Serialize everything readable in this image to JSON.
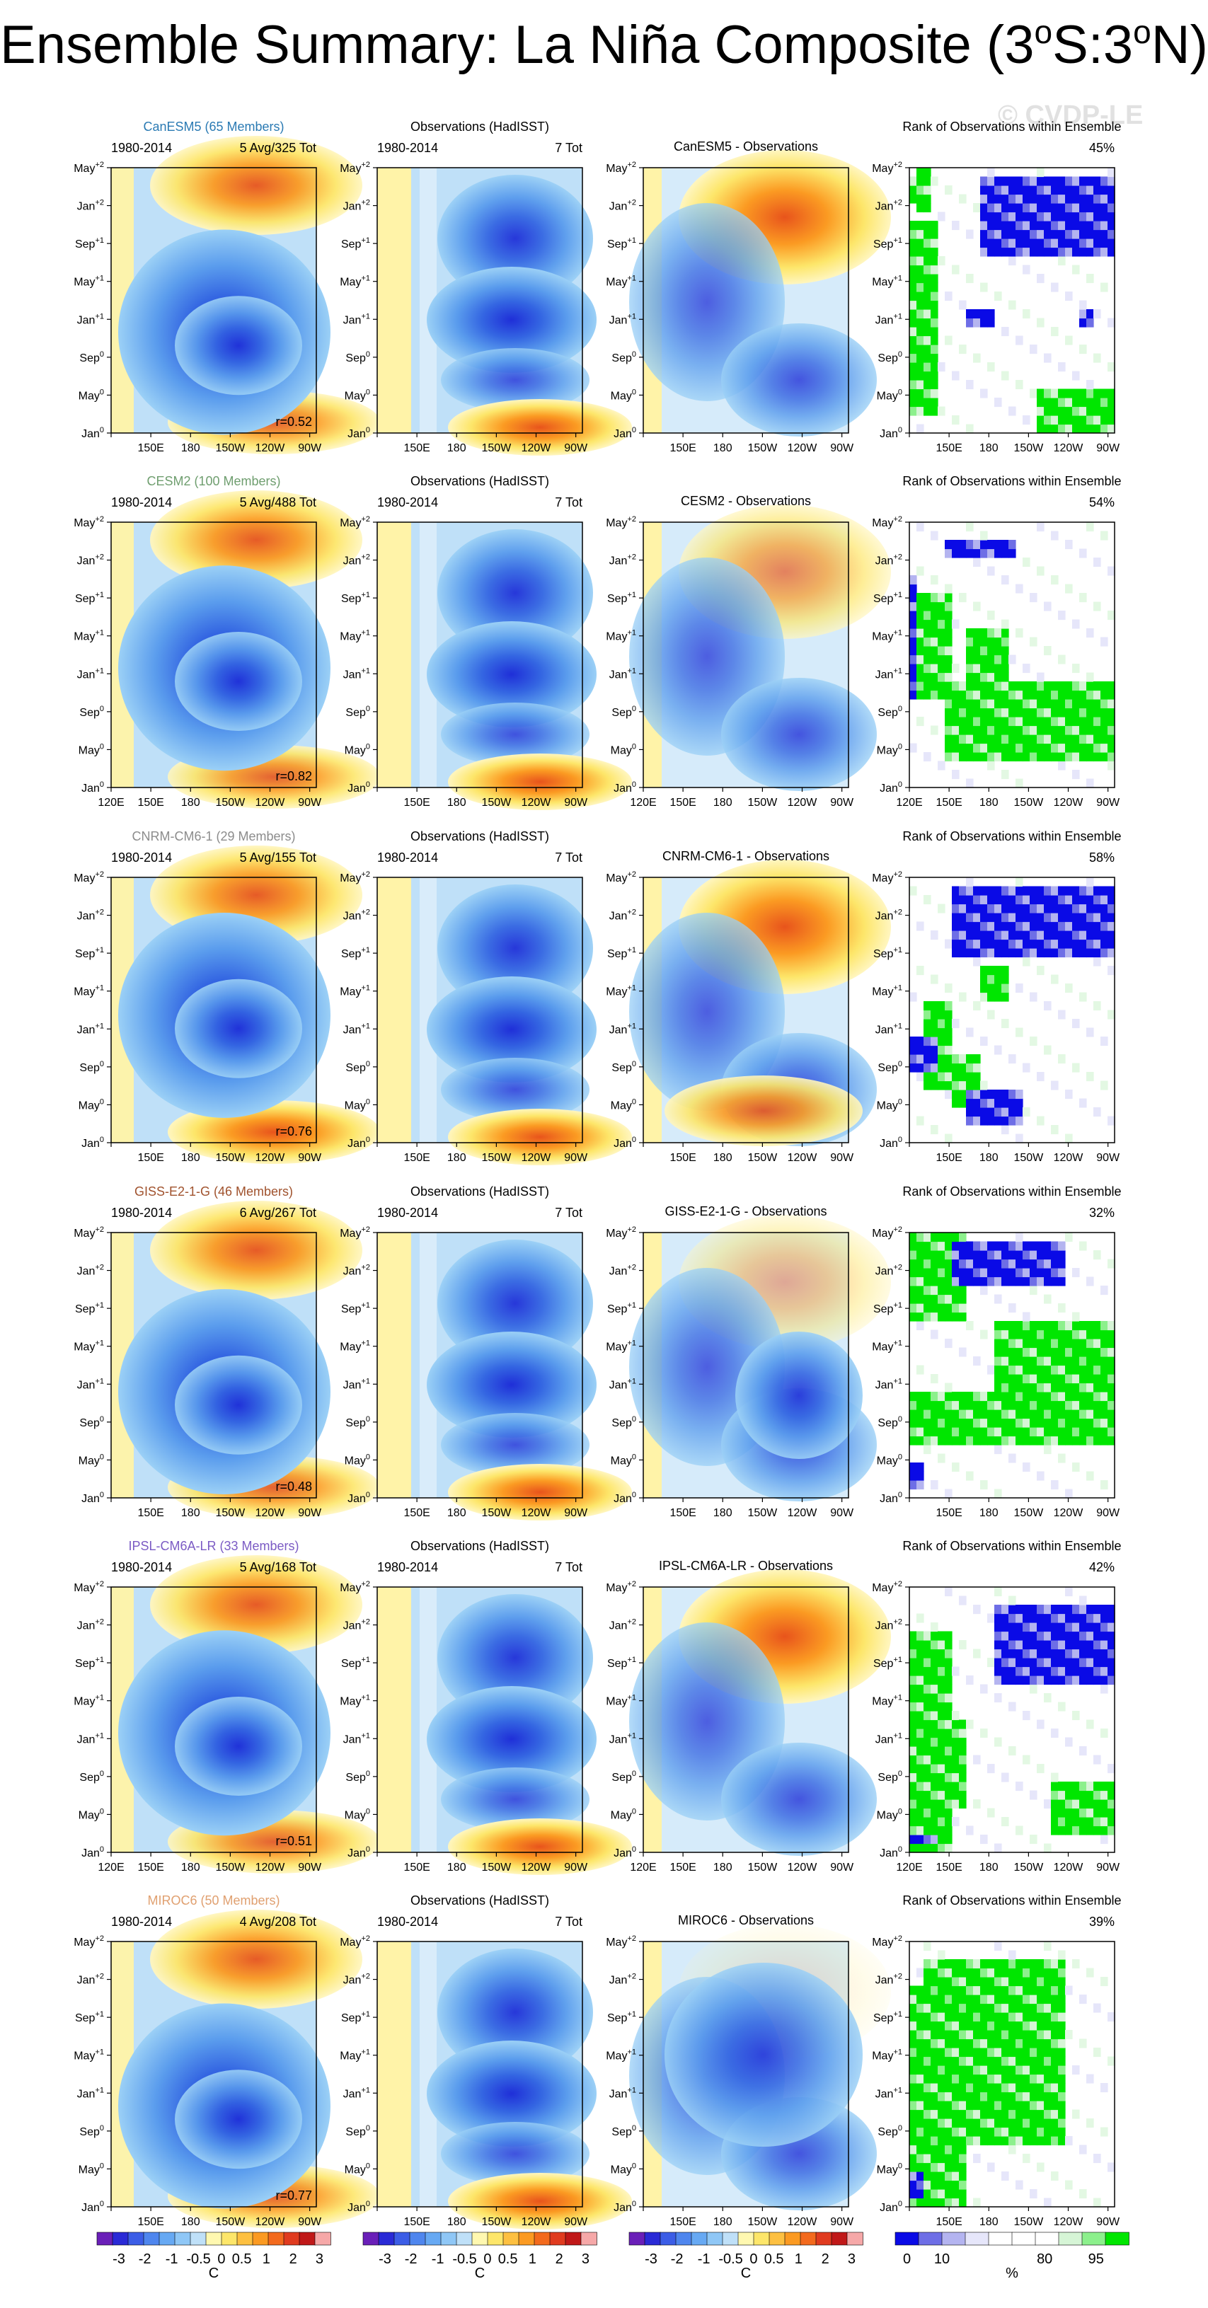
{
  "title": {
    "main": "Ensemble Summary: La Niña Composite (3",
    "deg1": "o",
    "mid": "S:3",
    "deg2": "o",
    "end": "N)"
  },
  "watermark": "© CVDP-LE",
  "chart_data": {
    "type": "heatmap",
    "description_vars": "Hovmöller composites of equatorial (3S:3N) SST anomaly vs time lag and longitude",
    "y_tick_labels": [
      "Jan",
      "May",
      "Sep",
      "Jan",
      "May",
      "Sep",
      "Jan",
      "May"
    ],
    "y_tick_sups": [
      "0",
      "0",
      "0",
      "+1",
      "+1",
      "+1",
      "+2",
      "+2"
    ],
    "x_tick_labels": [
      "120E",
      "150E",
      "180",
      "150W",
      "120W",
      "90W"
    ],
    "x_range": [
      120,
      275
    ],
    "y_range": [
      0,
      28
    ],
    "rows": [
      {
        "model": "CanESM5",
        "members": "CanESM5 (65 Members)",
        "model_color": "#2a7ab3",
        "period": "1980-2014",
        "model_count": "5 Avg/325 Tot",
        "obs_title": "Observations (HadISST)",
        "obs_count": "7 Tot",
        "diff_title": "CanESM5 - Observations",
        "rank_title": "Rank of Observations within Ensemble",
        "rank_pct": "45%",
        "r": "r=0.52",
        "show_120E": false
      },
      {
        "model": "CESM2",
        "members": "CESM2 (100 Members)",
        "model_color": "#6f9e6f",
        "period": "1980-2014",
        "model_count": "5 Avg/488 Tot",
        "obs_title": "Observations (HadISST)",
        "obs_count": "7 Tot",
        "diff_title": "CESM2 - Observations",
        "rank_title": "Rank of Observations within Ensemble",
        "rank_pct": "54%",
        "r": "r=0.82",
        "show_120E": true
      },
      {
        "model": "CNRM-CM6-1",
        "members": "CNRM-CM6-1 (29 Members)",
        "model_color": "#8c8c8c",
        "period": "1980-2014",
        "model_count": "5 Avg/155 Tot",
        "obs_title": "Observations (HadISST)",
        "obs_count": "7 Tot",
        "diff_title": "CNRM-CM6-1 - Observations",
        "rank_title": "Rank of Observations within Ensemble",
        "rank_pct": "58%",
        "r": "r=0.76",
        "show_120E": false
      },
      {
        "model": "GISS-E2-1-G",
        "members": "GISS-E2-1-G (46 Members)",
        "model_color": "#a0522d",
        "period": "1980-2014",
        "model_count": "6 Avg/267 Tot",
        "obs_title": "Observations (HadISST)",
        "obs_count": "7 Tot",
        "diff_title": "GISS-E2-1-G - Observations",
        "rank_title": "Rank of Observations within Ensemble",
        "rank_pct": "32%",
        "r": "r=0.48",
        "show_120E": false
      },
      {
        "model": "IPSL-CM6A-LR",
        "members": "IPSL-CM6A-LR (33 Members)",
        "model_color": "#7b5bc4",
        "period": "1980-2014",
        "model_count": "5 Avg/168 Tot",
        "obs_title": "Observations (HadISST)",
        "obs_count": "7 Tot",
        "diff_title": "IPSL-CM6A-LR - Observations",
        "rank_title": "Rank of Observations within Ensemble",
        "rank_pct": "42%",
        "r": "r=0.51",
        "show_120E": true
      },
      {
        "model": "MIROC6",
        "members": "MIROC6 (50 Members)",
        "model_color": "#e0a070",
        "period": "1980-2014",
        "model_count": "4 Avg/208 Tot",
        "obs_title": "Observations (HadISST)",
        "obs_count": "7 Tot",
        "diff_title": "MIROC6 - Observations",
        "rank_title": "Rank of Observations within Ensemble",
        "rank_pct": "39%",
        "r": "r=0.77",
        "show_120E": false
      }
    ],
    "sst_colorbar": {
      "labels": [
        "-3",
        "-2",
        "-1",
        "-0.5",
        "0",
        "0.5",
        "1",
        "2",
        "3"
      ],
      "unit": "C",
      "colors": [
        "#6a1fb8",
        "#2a2ad6",
        "#3c5de6",
        "#4f86ee",
        "#67a9f3",
        "#8fc7f6",
        "#bfe0f8",
        "#fff8b0",
        "#fde66a",
        "#fdc041",
        "#fb9a22",
        "#f36a1d",
        "#e03b1f",
        "#c01818",
        "#f6a8a8"
      ]
    },
    "rank_colorbar": {
      "labels": [
        "0",
        "10",
        "80",
        "95"
      ],
      "unit": "%",
      "colors": [
        "#0a0ae6",
        "#6e6ee6",
        "#b4b4f0",
        "#e6e6fa",
        "#ffffff",
        "#ffffff",
        "#ffffff",
        "#d6f5d6",
        "#8cf08c",
        "#00e600"
      ]
    }
  }
}
